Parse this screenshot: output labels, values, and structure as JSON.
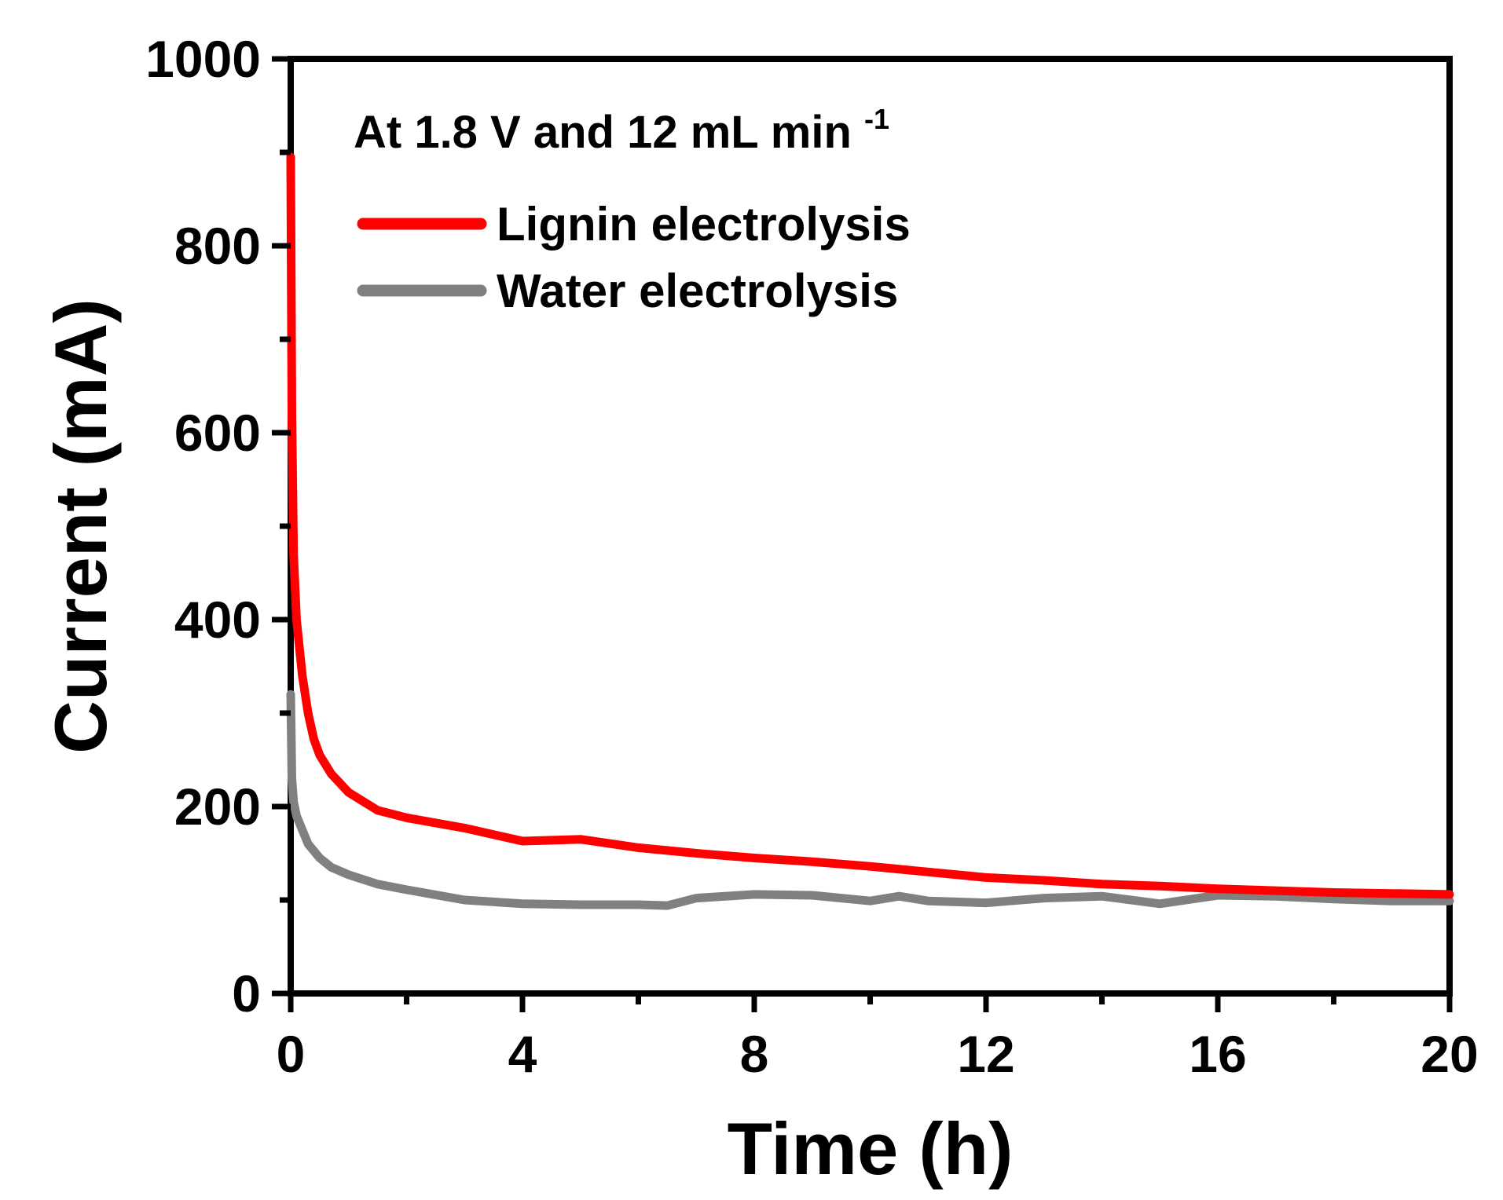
{
  "chart_data": {
    "type": "line",
    "xlabel": "Time (h)",
    "ylabel": "Current (mA)",
    "xlim": [
      0,
      20
    ],
    "ylim": [
      0,
      1000
    ],
    "xticks": [
      0,
      4,
      8,
      12,
      16,
      20
    ],
    "yticks": [
      0,
      200,
      400,
      600,
      800,
      1000
    ],
    "xtick_labels": [
      "0",
      "4",
      "8",
      "12",
      "16",
      "20"
    ],
    "ytick_labels": [
      "0",
      "200",
      "400",
      "600",
      "800",
      "1000"
    ],
    "grid": false,
    "legend_position": "top-left",
    "annotation": {
      "text": "At 1.8 V and 12 mL min",
      "superscript": "-1"
    },
    "series": [
      {
        "name": "Lignin electrolysis",
        "color": "#ff0000",
        "x": [
          0,
          0.02,
          0.05,
          0.1,
          0.2,
          0.3,
          0.4,
          0.5,
          0.7,
          1.0,
          1.5,
          2.0,
          3.0,
          4.0,
          5.0,
          6.0,
          7.0,
          8.0,
          9.0,
          10.0,
          11.0,
          12.0,
          13.0,
          14.0,
          15.0,
          16.0,
          17.0,
          18.0,
          19.0,
          20.0
        ],
        "y": [
          895,
          620,
          470,
          400,
          340,
          300,
          272,
          255,
          235,
          215,
          196,
          188,
          177,
          163,
          165,
          156,
          150,
          145,
          141,
          136,
          130,
          124,
          121,
          117,
          115,
          112,
          110,
          108,
          107,
          106
        ]
      },
      {
        "name": "Water electrolysis",
        "color": "#808080",
        "x": [
          0,
          0.02,
          0.05,
          0.1,
          0.2,
          0.3,
          0.5,
          0.7,
          1.0,
          1.5,
          2.0,
          3.0,
          4.0,
          5.0,
          6.0,
          6.5,
          7.0,
          8.0,
          9.0,
          10.0,
          10.5,
          11.0,
          12.0,
          13.0,
          14.0,
          15.0,
          16.0,
          17.0,
          18.0,
          19.0,
          20.0
        ],
        "y": [
          320,
          230,
          205,
          190,
          175,
          160,
          145,
          135,
          127,
          117,
          111,
          100,
          96,
          95,
          95,
          94,
          102,
          106,
          105,
          99,
          104,
          99,
          97,
          102,
          104,
          96,
          105,
          104,
          101,
          99,
          99
        ]
      }
    ]
  }
}
